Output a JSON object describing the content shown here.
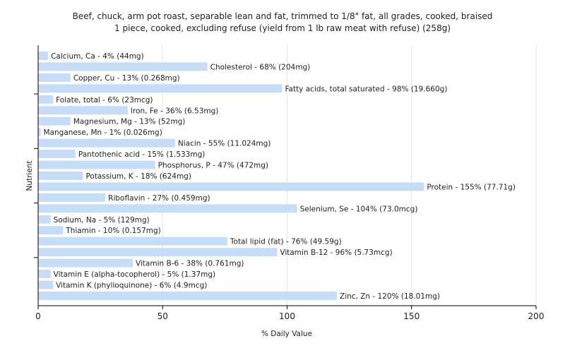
{
  "chart_data": {
    "type": "bar",
    "orientation": "horizontal",
    "title": "Beef, chuck, arm pot roast, separable lean and fat, trimmed to 1/8\" fat, all grades, cooked, braised",
    "subtitle": "1 piece, cooked, excluding refuse (yield from 1 lb raw meat with refuse) (258g)",
    "xlabel": "% Daily Value",
    "ylabel": "Nutrient",
    "xlim": [
      0,
      200
    ],
    "xticks": [
      "0",
      "50",
      "100",
      "150",
      "200"
    ],
    "grid": true,
    "bar_color": "#c6dcf7",
    "categories": [
      "Calcium, Ca",
      "Cholesterol",
      "Copper, Cu",
      "Fatty acids, total saturated",
      "Folate, total",
      "Iron, Fe",
      "Magnesium, Mg",
      "Manganese, Mn",
      "Niacin",
      "Pantothenic acid",
      "Phosphorus, P",
      "Potassium, K",
      "Protein",
      "Riboflavin",
      "Selenium, Se",
      "Sodium, Na",
      "Thiamin",
      "Total lipid (fat)",
      "Vitamin B-12",
      "Vitamin B-6",
      "Vitamin E (alpha-tocopherol)",
      "Vitamin K (phylloquinone)",
      "Zinc, Zn"
    ],
    "values": [
      4,
      68,
      13,
      98,
      6,
      36,
      13,
      1,
      55,
      15,
      47,
      18,
      155,
      27,
      104,
      5,
      10,
      76,
      96,
      38,
      5,
      6,
      120
    ],
    "labels": [
      "Calcium, Ca - 4% (44mg)",
      "Cholesterol - 68% (204mg)",
      "Copper, Cu - 13% (0.268mg)",
      "Fatty acids, total saturated - 98% (19.660g)",
      "Folate, total - 6% (23mcg)",
      "Iron, Fe - 36% (6.53mg)",
      "Magnesium, Mg - 13% (52mg)",
      "Manganese, Mn - 1% (0.026mg)",
      "Niacin - 55% (11.024mg)",
      "Pantothenic acid - 15% (1.533mg)",
      "Phosphorus, P - 47% (472mg)",
      "Potassium, K - 18% (624mg)",
      "Protein - 155% (77.71g)",
      "Riboflavin - 27% (0.459mg)",
      "Selenium, Se - 104% (73.0mcg)",
      "Sodium, Na - 5% (129mg)",
      "Thiamin - 10% (0.157mg)",
      "Total lipid (fat) - 76% (49.59g)",
      "Vitamin B-12 - 96% (5.73mcg)",
      "Vitamin B-6 - 38% (0.761mg)",
      "Vitamin E (alpha-tocopherol) - 5% (1.37mg)",
      "Vitamin K (phylloquinone) - 6% (4.9mcg)",
      "Zinc, Zn - 120% (18.01mg)"
    ]
  }
}
